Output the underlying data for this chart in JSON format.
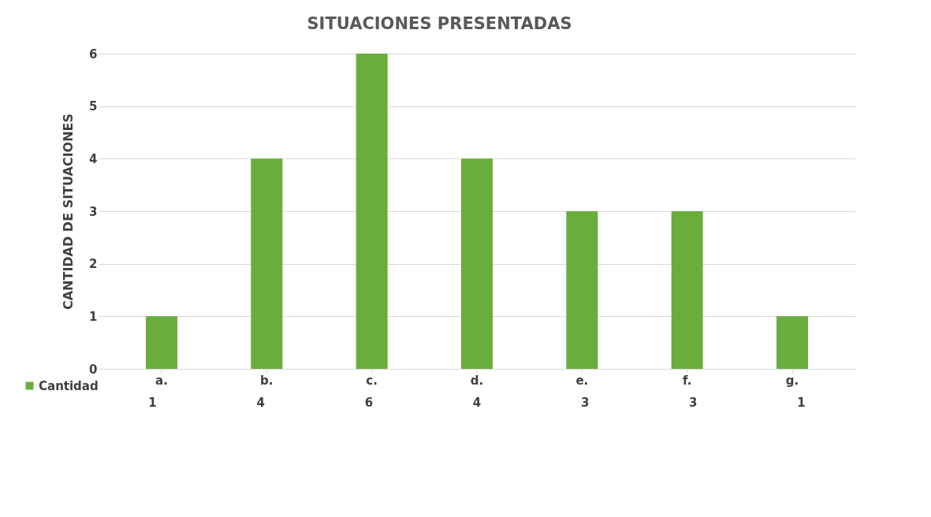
{
  "chart_data": {
    "type": "bar",
    "title": "SITUACIONES PRESENTADAS",
    "ylabel": "CANTIDAD DE SITUACIONES",
    "categories": [
      "a.",
      "b.",
      "c.",
      "d.",
      "e.",
      "f.",
      "g."
    ],
    "series": [
      {
        "name": "Cantidad",
        "color": "#6aad3d",
        "values": [
          1,
          4,
          6,
          4,
          3,
          3,
          1
        ]
      }
    ],
    "ylim": [
      0,
      6
    ],
    "yticks": [
      0,
      1,
      2,
      3,
      4,
      5,
      6
    ],
    "grid": "y",
    "data_labels": true,
    "legend": "bottom left"
  }
}
